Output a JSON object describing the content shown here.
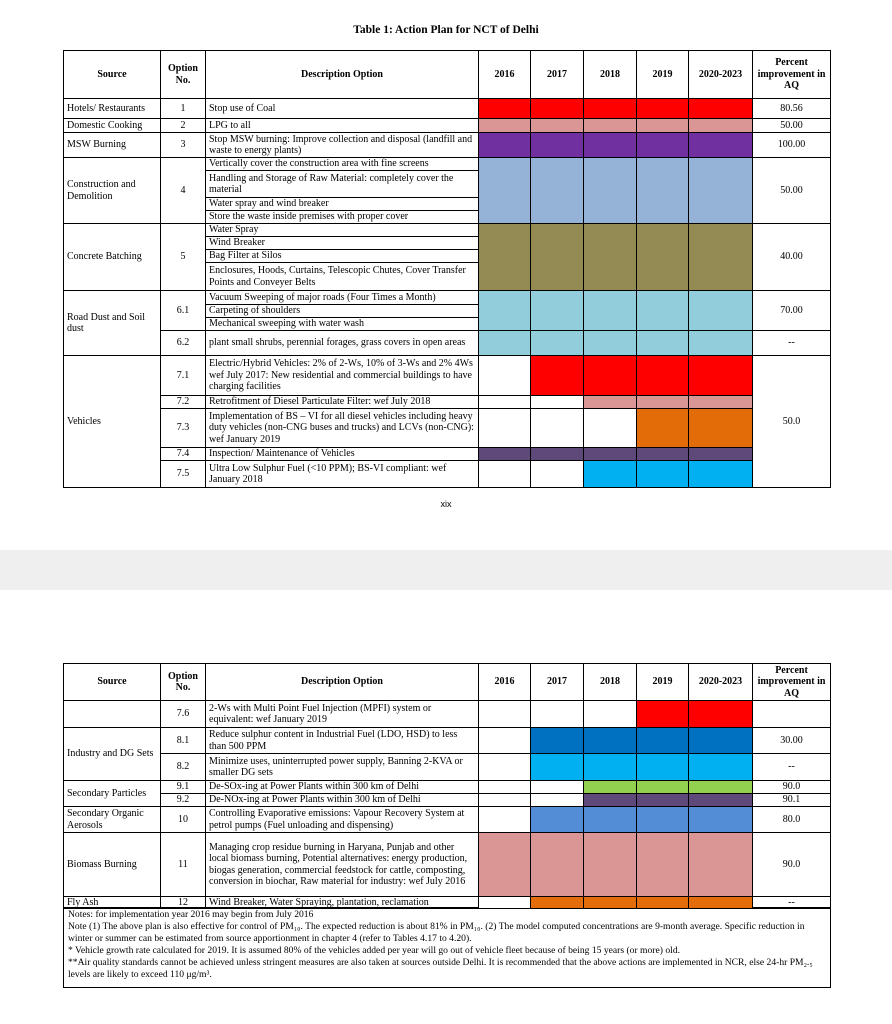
{
  "pages": [
    {
      "title": "Table 1: Action Plan for NCT of Delhi",
      "headers": [
        "Source",
        "Option No.",
        "Description Option",
        "2016",
        "2017",
        "2018",
        "2019",
        "2020-2023",
        "Percent improvement in AQ"
      ],
      "groups": [
        {
          "source": "Hotels/ Restaurants",
          "rows": [
            {
              "option": "1",
              "items": [
                "Stop use of Coal"
              ],
              "percent": "80.56",
              "colors": [
                "#ff0000",
                "#ff0000",
                "#ff0000",
                "#ff0000",
                "#ff0000"
              ]
            }
          ]
        },
        {
          "source": "Domestic Cooking",
          "rows": [
            {
              "option": "2",
              "items": [
                "LPG to all"
              ],
              "percent": "50.00",
              "colors": [
                "#da9694",
                "#da9694",
                "#da9694",
                "#da9694",
                "#da9694"
              ]
            }
          ]
        },
        {
          "source": "MSW Burning",
          "rows": [
            {
              "option": "3",
              "items": [
                "Stop MSW burning: Improve collection and disposal (landfill and waste to energy plants)"
              ],
              "percent": "100.00",
              "colors": [
                "#7030a0",
                "#7030a0",
                "#7030a0",
                "#7030a0",
                "#7030a0"
              ]
            }
          ]
        },
        {
          "source": "Construction and Demolition",
          "rows": [
            {
              "option": "4",
              "items": [
                "Vertically cover the construction area with fine screens",
                "Handling and Storage of Raw Material: completely cover the material",
                "Water spray and wind breaker",
                "Store the waste inside premises with proper cover"
              ],
              "percent": "50.00",
              "colors": [
                "#95b3d7",
                "#95b3d7",
                "#95b3d7",
                "#95b3d7",
                "#95b3d7"
              ]
            }
          ]
        },
        {
          "source": "Concrete Batching",
          "rows": [
            {
              "option": "5",
              "items": [
                "Water Spray",
                "Wind Breaker",
                "Bag Filter at Silos",
                "Enclosures, Hoods, Curtains, Telescopic Chutes, Cover Transfer Points and Conveyer Belts"
              ],
              "percent": "40.00",
              "colors": [
                "#948a54",
                "#948a54",
                "#948a54",
                "#948a54",
                "#948a54"
              ]
            }
          ]
        },
        {
          "source": "Road Dust and Soil dust",
          "rows": [
            {
              "option": "6.1",
              "items": [
                "Vacuum Sweeping of major roads (Four Times a Month)",
                "Carpeting of shoulders",
                "Mechanical sweeping with water wash"
              ],
              "percent": "70.00",
              "colors": [
                "#92cddc",
                "#92cddc",
                "#92cddc",
                "#92cddc",
                "#92cddc"
              ]
            },
            {
              "option": "6.2",
              "items": [
                "plant small shrubs, perennial forages, grass covers in open areas"
              ],
              "percent": "--",
              "colors": [
                "#92cddc",
                "#92cddc",
                "#92cddc",
                "#92cddc",
                "#92cddc"
              ]
            }
          ]
        },
        {
          "source": "Vehicles",
          "percent": "50.0",
          "rows": [
            {
              "option": "7.1",
              "items": [
                "Electric/Hybrid Vehicles: 2% of 2-Ws, 10% of 3-Ws and 2% 4Ws wef July 2017: New residential and commercial buildings to have charging facilities"
              ],
              "colors": [
                null,
                "#ff0000",
                "#ff0000",
                "#ff0000",
                "#ff0000"
              ]
            },
            {
              "option": "7.2",
              "items": [
                "Retrofitment of Diesel Particulate Filter: wef July 2018"
              ],
              "colors": [
                null,
                null,
                "#da9694",
                "#da9694",
                "#da9694"
              ]
            },
            {
              "option": "7.3",
              "items": [
                "Implementation of BS – VI for all diesel vehicles including heavy duty vehicles (non-CNG buses and trucks) and LCVs (non-CNG): wef January 2019"
              ],
              "colors": [
                null,
                null,
                null,
                "#e36c09",
                "#e36c09"
              ]
            },
            {
              "option": "7.4",
              "items": [
                "Inspection/ Maintenance of Vehicles"
              ],
              "colors": [
                "#5f497a",
                "#5f497a",
                "#5f497a",
                "#5f497a",
                "#5f497a"
              ]
            },
            {
              "option": "7.5",
              "items": [
                "Ultra Low Sulphur Fuel (<10 PPM); BS-VI compliant: wef January 2018"
              ],
              "colors": [
                null,
                null,
                "#00b0f0",
                "#00b0f0",
                "#00b0f0"
              ]
            }
          ]
        }
      ],
      "page_number": "xix"
    },
    {
      "headers": [
        "Source",
        "Option No.",
        "Description Option",
        "2016",
        "2017",
        "2018",
        "2019",
        "2020-2023",
        "Percent improvement in AQ"
      ],
      "groups": [
        {
          "rows": [
            {
              "option": "7.6",
              "items": [
                "2-Ws with Multi Point Fuel Injection (MPFI) system or equivalent: wef January 2019"
              ],
              "colors": [
                null,
                null,
                null,
                "#ff0000",
                "#ff0000"
              ]
            }
          ]
        },
        {
          "source": "Industry and DG Sets",
          "rows": [
            {
              "option": "8.1",
              "items": [
                "Reduce sulphur content in Industrial Fuel (LDO, HSD) to less than 500 PPM"
              ],
              "percent": "30.00",
              "colors": [
                null,
                "#0070c0",
                "#0070c0",
                "#0070c0",
                "#0070c0"
              ]
            },
            {
              "option": "8.2",
              "items": [
                "Minimize uses, uninterrupted power supply, Banning 2-KVA or smaller DG sets"
              ],
              "percent": "--",
              "colors": [
                null,
                "#00b0f0",
                "#00b0f0",
                "#00b0f0",
                "#00b0f0"
              ]
            }
          ]
        },
        {
          "source": "Secondary Particles",
          "rows": [
            {
              "option": "9.1",
              "items": [
                "De-SOx-ing at Power Plants within 300 km of Delhi"
              ],
              "percent": "90.0",
              "colors": [
                null,
                null,
                "#92d050",
                "#92d050",
                "#92d050"
              ]
            },
            {
              "option": "9.2",
              "items": [
                "De-NOx-ing at Power Plants within 300 km of Delhi"
              ],
              "percent": "90.1",
              "colors": [
                null,
                null,
                "#5f497a",
                "#5f497a",
                "#5f497a"
              ]
            }
          ]
        },
        {
          "source": "Secondary Organic Aerosols",
          "rows": [
            {
              "option": "10",
              "items": [
                "Controlling Evaporative emissions: Vapour Recovery System at petrol pumps (Fuel unloading and dispensing)"
              ],
              "percent": "80.0",
              "colors": [
                null,
                "#538dd5",
                "#538dd5",
                "#538dd5",
                "#538dd5"
              ]
            }
          ]
        },
        {
          "source": "Biomass Burning",
          "rows": [
            {
              "option": "11",
              "items": [
                "Managing crop residue burning in Haryana, Punjab and other local biomass burning, Potential alternatives: energy production, biogas generation, commercial feedstock for cattle, composting, conversion in biochar, Raw material for industry: wef July 2016"
              ],
              "percent": "90.0",
              "colors": [
                "#da9694",
                "#da9694",
                "#da9694",
                "#da9694",
                "#da9694"
              ]
            }
          ]
        },
        {
          "source": "Fly Ash",
          "rows": [
            {
              "option": "12",
              "items": [
                "Wind Breaker, Water Spraying, plantation, reclamation"
              ],
              "percent": "--",
              "colors": [
                null,
                "#e46c0a",
                "#e46c0a",
                "#e46c0a",
                "#e46c0a"
              ]
            }
          ]
        }
      ],
      "notes": [
        "Notes: for implementation year 2016 may begin from July 2016",
        "Note (1) The above plan is also effective for control of PM₁₀. The expected reduction is about 81% in PM₁₀. (2) The model computed concentrations are 9-month average. Specific reduction in winter or summer can be estimated from source apportionment in chapter 4 (refer to Tables 4.17 to 4.20).",
        "* Vehicle growth rate calculated for 2019. It is assumed 80% of the vehicles added per year will go out of vehicle fleet because of being 15 years (or more) old.",
        "**Air quality standards cannot be achieved unless stringent measures are also taken at sources outside Delhi. It is recommended that the above actions are implemented in NCR, else 24-hr PM₂.₅ levels are likely to exceed 110 μg/m³."
      ]
    }
  ]
}
